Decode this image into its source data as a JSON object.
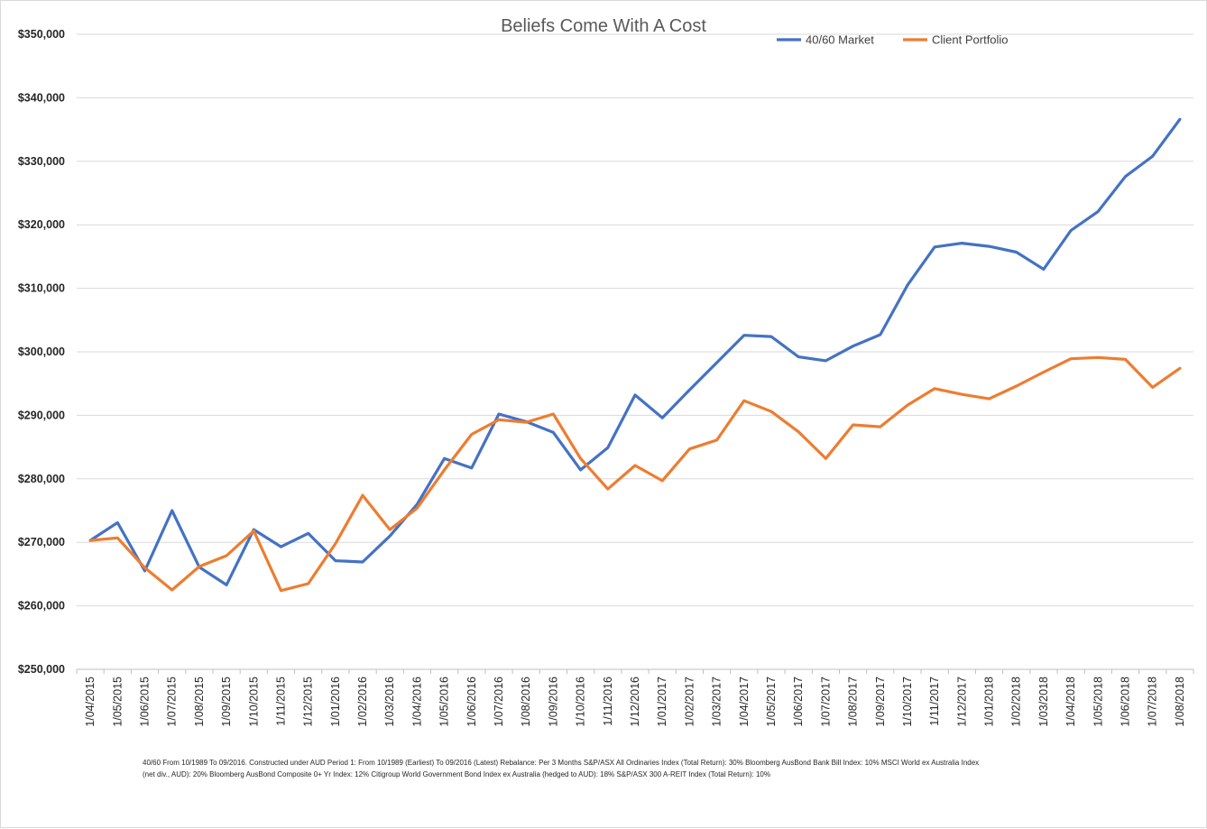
{
  "chart_data": {
    "type": "line",
    "title": "Beliefs Come With A Cost",
    "xlabel": "",
    "ylabel": "",
    "ylim": [
      250000,
      350000
    ],
    "y_ticks": [
      "$250,000",
      "$260,000",
      "$270,000",
      "$280,000",
      "$290,000",
      "$300,000",
      "$310,000",
      "$320,000",
      "$330,000",
      "$340,000",
      "$350,000"
    ],
    "grid": true,
    "legend_position": "top-right",
    "categories": [
      "1/04/2015",
      "1/05/2015",
      "1/06/2015",
      "1/07/2015",
      "1/08/2015",
      "1/09/2015",
      "1/10/2015",
      "1/11/2015",
      "1/12/2015",
      "1/01/2016",
      "1/02/2016",
      "1/03/2016",
      "1/04/2016",
      "1/05/2016",
      "1/06/2016",
      "1/07/2016",
      "1/08/2016",
      "1/09/2016",
      "1/10/2016",
      "1/11/2016",
      "1/12/2016",
      "1/01/2017",
      "1/02/2017",
      "1/03/2017",
      "1/04/2017",
      "1/05/2017",
      "1/06/2017",
      "1/07/2017",
      "1/08/2017",
      "1/09/2017",
      "1/10/2017",
      "1/11/2017",
      "1/12/2017",
      "1/01/2018",
      "1/02/2018",
      "1/03/2018",
      "1/04/2018",
      "1/05/2018",
      "1/06/2018",
      "1/07/2018",
      "1/08/2018"
    ],
    "series": [
      {
        "name": "40/60 Market",
        "color": "#4472c4",
        "values": [
          270300,
          273100,
          265500,
          275000,
          266100,
          263300,
          272000,
          269300,
          271400,
          267100,
          266900,
          271000,
          276000,
          283200,
          281700,
          290200,
          289000,
          287300,
          281400,
          284900,
          293200,
          289600,
          294000,
          298300,
          302600,
          302400,
          299200,
          298600,
          300900,
          302700,
          310500,
          316500,
          317100,
          316600,
          315700,
          313000,
          319100,
          322100,
          327600,
          330800,
          336600
        ]
      },
      {
        "name": "Client Portfolio",
        "color": "#ed7d31",
        "values": [
          270300,
          270700,
          266000,
          262500,
          266200,
          267900,
          271800,
          262400,
          263500,
          269800,
          277400,
          272000,
          275400,
          281400,
          287000,
          289300,
          288900,
          290200,
          283200,
          278400,
          282100,
          279700,
          284700,
          286100,
          292300,
          290600,
          287400,
          283200,
          288500,
          288200,
          291600,
          294200,
          293300,
          292600,
          294600,
          296800,
          298900,
          299100,
          298800,
          294400,
          297400
        ]
      }
    ]
  },
  "footnote": {
    "line1": "40/60 From 10/1989 To 09/2016. Constructed under AUD Period 1:  From 10/1989 (Earliest) To 09/2016 (Latest) Rebalance: Per 3 Months S&P/ASX All Ordinaries Index (Total Return): 30% Bloomberg AusBond Bank Bill Index: 10% MSCI World ex Australia Index",
    "line2": "(net div., AUD): 20% Bloomberg AusBond Composite 0+ Yr Index: 12% Citigroup World Government Bond Index ex Australia (hedged to AUD): 18% S&P/ASX 300 A-REIT Index (Total Return): 10%"
  }
}
